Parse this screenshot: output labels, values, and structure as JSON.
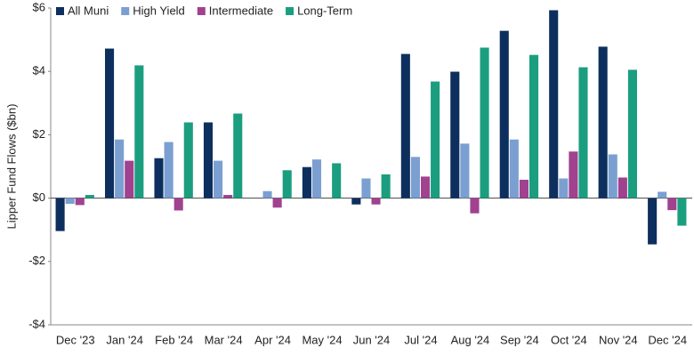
{
  "chart_data": {
    "type": "bar",
    "y_label": "Lipper Fund Flows ($bn)",
    "categories": [
      "Dec '23",
      "Jan '24",
      "Feb '24",
      "Mar '24",
      "Apr '24",
      "May '24",
      "Jun '24",
      "Jul '24",
      "Aug '24",
      "Sep '24",
      "Oct '24",
      "Nov '24",
      "Dec '24"
    ],
    "series": [
      {
        "name": "All Muni",
        "color": "#0d2f5e",
        "values": [
          -1.04,
          4.72,
          1.26,
          2.39,
          0,
          0.98,
          -0.2,
          4.55,
          3.99,
          5.28,
          5.93,
          4.78,
          -1.46
        ]
      },
      {
        "name": "High Yield",
        "color": "#7b9fd1",
        "values": [
          -0.18,
          1.85,
          1.77,
          1.18,
          0.22,
          1.22,
          0.62,
          1.3,
          1.72,
          1.85,
          0.62,
          1.38,
          0.2
        ]
      },
      {
        "name": "Intermediate",
        "color": "#a0428f",
        "values": [
          -0.22,
          1.18,
          -0.39,
          0.1,
          -0.3,
          0,
          -0.2,
          0.68,
          -0.48,
          0.58,
          1.47,
          0.65,
          -0.38
        ]
      },
      {
        "name": "Long-Term",
        "color": "#1b9e7f",
        "values": [
          0.1,
          4.19,
          2.39,
          2.67,
          0.88,
          1.1,
          0.75,
          3.68,
          4.75,
          4.52,
          4.13,
          4.05,
          -0.87
        ]
      }
    ],
    "ylim": [
      -4,
      6
    ],
    "yticks": [
      {
        "value": -4,
        "label": "-$4"
      },
      {
        "value": -2,
        "label": "-$2"
      },
      {
        "value": 0,
        "label": "$0"
      },
      {
        "value": 2,
        "label": "$2"
      },
      {
        "value": 4,
        "label": "$4"
      },
      {
        "value": 6,
        "label": "$6"
      }
    ],
    "legend": "top-left"
  }
}
